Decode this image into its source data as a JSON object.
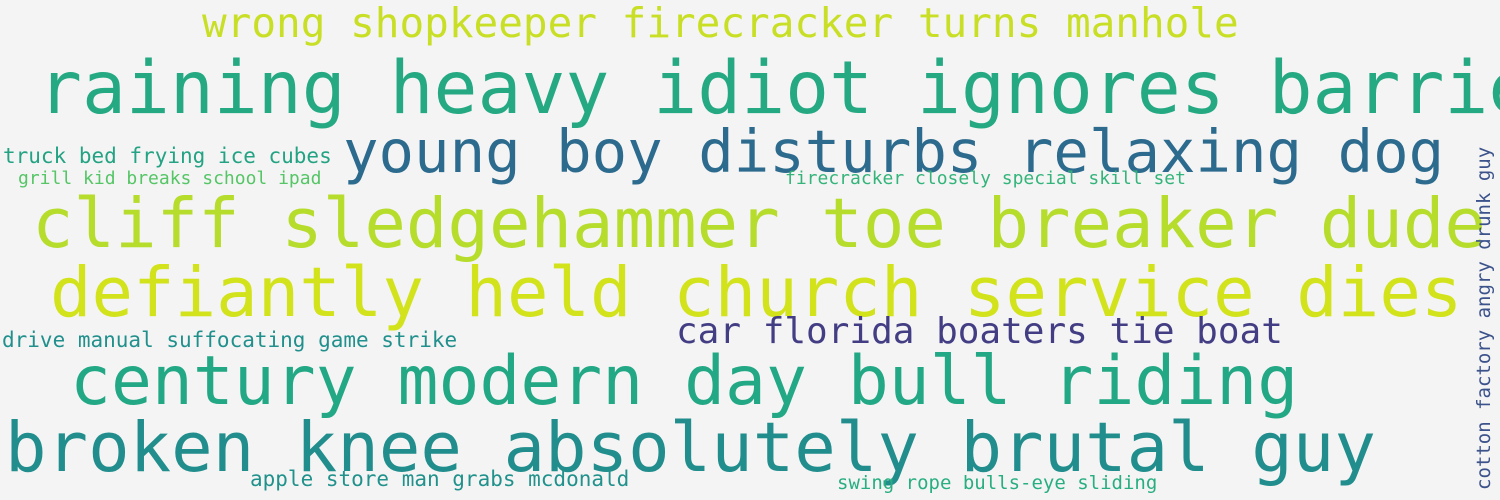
{
  "phrases": [
    {
      "text": "wrong shopkeeper firecracker turns manhole",
      "color": "#c8df25"
    },
    {
      "text": "raining heavy idiot ignores barriers",
      "color": "#25a982"
    },
    {
      "text": "young boy disturbs relaxing dog",
      "color": "#2d6b8e"
    },
    {
      "text": "truck bed frying ice cubes",
      "color": "#23a383"
    },
    {
      "text": "grill kid breaks school ipad",
      "color": "#55c566"
    },
    {
      "text": "firecracker closely special skill set",
      "color": "#34b47a"
    },
    {
      "text": "cliff sledgehammer toe breaker dude",
      "color": "#b6dc2c"
    },
    {
      "text": "defiantly held church service dies",
      "color": "#d2e21b"
    },
    {
      "text": "drive manual suffocating game strike",
      "color": "#21908d"
    },
    {
      "text": "car florida boaters tie boat",
      "color": "#433e84"
    },
    {
      "text": "century modern day bull riding",
      "color": "#22a884"
    },
    {
      "text": "broken knee absolutely brutal guy",
      "color": "#218e8d"
    },
    {
      "text": "apple store man grabs mcdonald",
      "color": "#21918c"
    },
    {
      "text": "swing rope bulls-eye sliding",
      "color": "#28ae80"
    },
    {
      "text": "cotton factory angry drunk guy",
      "color": "#3b528b"
    }
  ]
}
